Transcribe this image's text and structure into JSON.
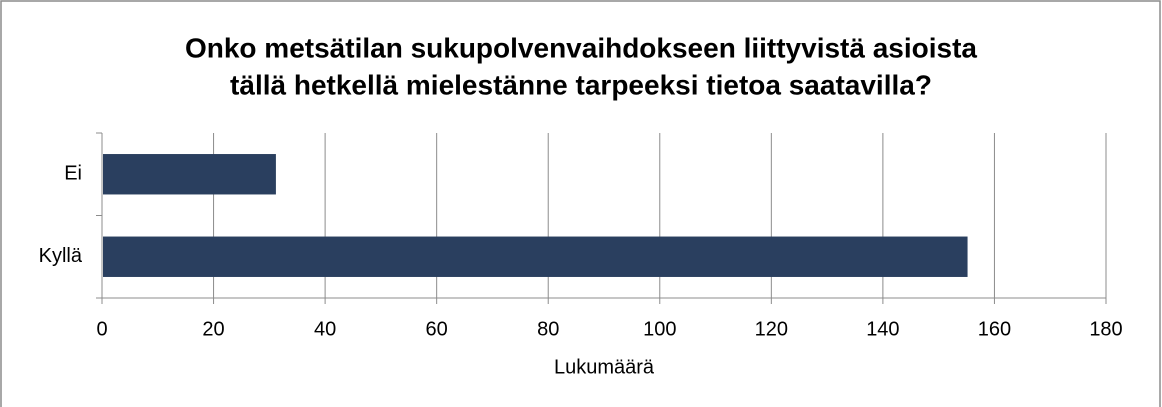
{
  "chart_data": {
    "type": "barh",
    "title": [
      "Onko metsätilan sukupolvenvaihdokseen liittyvistä asioista",
      "tällä hetkellä mielestänne tarpeeksi tietoa saatavilla?"
    ],
    "categories": [
      "Ei",
      "Kyllä"
    ],
    "values": [
      31,
      155
    ],
    "color": "#2a3f5f",
    "xlabel": "Lukumäärä",
    "xlim": [
      0,
      180
    ],
    "xticks": [
      0,
      20,
      40,
      60,
      80,
      100,
      120,
      140,
      160,
      180
    ],
    "grid": true
  }
}
